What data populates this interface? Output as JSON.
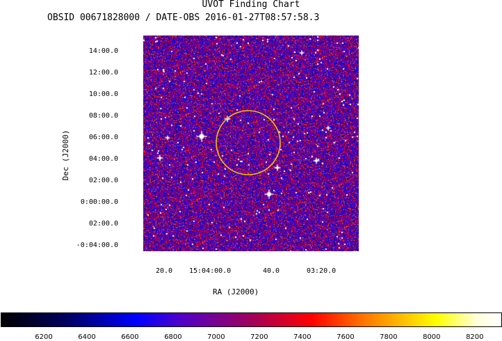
{
  "chart": {
    "title": "UVOT Finding Chart",
    "subtitle": "OBSID 00671828000 / DATE-OBS 2016-01-27T08:57:58.3",
    "xlabel": "RA (J2000)",
    "ylabel": "Dec (J2000)",
    "y_ticks": [
      "14:00.0",
      "12:00.0",
      "10:00.0",
      "08:00.0",
      "06:00.0",
      "04:00.0",
      "02:00.0",
      "0:00:00.0",
      "02:00.0",
      "-0:04:00.0"
    ],
    "x_ticks": [
      "20.0",
      "15:04:00.0",
      "40.0",
      "03:20.0"
    ],
    "colorbar_ticks": [
      "6200",
      "6400",
      "6600",
      "6800",
      "7000",
      "7200",
      "7400",
      "7600",
      "7800",
      "8000",
      "8200"
    ],
    "colorbar_range": [
      6000,
      8320
    ],
    "circle_color": "#f2c200"
  }
}
